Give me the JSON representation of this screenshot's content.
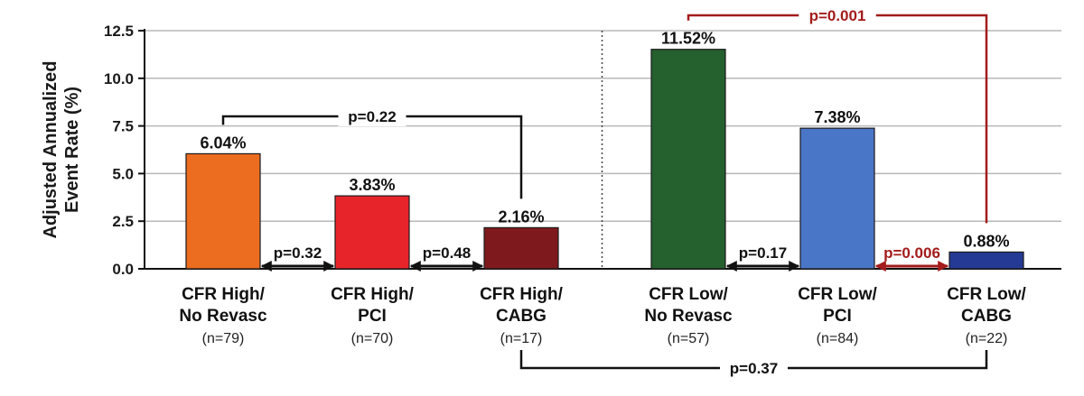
{
  "chart_data": {
    "type": "bar",
    "ylabel_lines": [
      "Adjusted Annualized",
      "Event Rate (%)"
    ],
    "ylim": [
      0,
      12.5
    ],
    "yticks": [
      "0.0",
      "2.5",
      "5.0",
      "7.5",
      "10.0",
      "12.5"
    ],
    "grid": true,
    "categories": [
      {
        "line1": "CFR High/",
        "line2": "No Revasc",
        "n": "(n=79)"
      },
      {
        "line1": "CFR High/",
        "line2": "PCI",
        "n": "(n=70)"
      },
      {
        "line1": "CFR High/",
        "line2": "CABG",
        "n": "(n=17)"
      },
      {
        "line1": "CFR Low/",
        "line2": "No Revasc",
        "n": "(n=57)"
      },
      {
        "line1": "CFR Low/",
        "line2": "PCI",
        "n": "(n=84)"
      },
      {
        "line1": "CFR Low/",
        "line2": "CABG",
        "n": "(n=22)"
      }
    ],
    "values": [
      6.04,
      3.83,
      2.16,
      11.52,
      7.38,
      0.88
    ],
    "data_labels": [
      "6.04%",
      "3.83%",
      "2.16%",
      "11.52%",
      "7.38%",
      "0.88%"
    ],
    "bar_colors": [
      "#ec6d1f",
      "#e8242b",
      "#7e1a1d",
      "#25602f",
      "#4a76c7",
      "#253a94"
    ],
    "comparisons": [
      {
        "type": "bracket_above",
        "from": 0,
        "to": 2,
        "label": "p=0.22",
        "color": "#111111"
      },
      {
        "type": "bracket_above",
        "from": 3,
        "to": 5,
        "label": "p=0.001",
        "color": "#a31b1b"
      },
      {
        "type": "bracket_below",
        "from": 2,
        "to": 5,
        "label": "p=0.37",
        "color": "#111111"
      },
      {
        "type": "arrow_baseline",
        "from": 0,
        "to": 1,
        "label": "p=0.32",
        "color": "#111111"
      },
      {
        "type": "arrow_baseline",
        "from": 1,
        "to": 2,
        "label": "p=0.48",
        "color": "#111111"
      },
      {
        "type": "arrow_baseline",
        "from": 3,
        "to": 4,
        "label": "p=0.17",
        "color": "#111111"
      },
      {
        "type": "arrow_baseline",
        "from": 4,
        "to": 5,
        "label": "p=0.006",
        "color": "#a31b1b"
      }
    ]
  }
}
